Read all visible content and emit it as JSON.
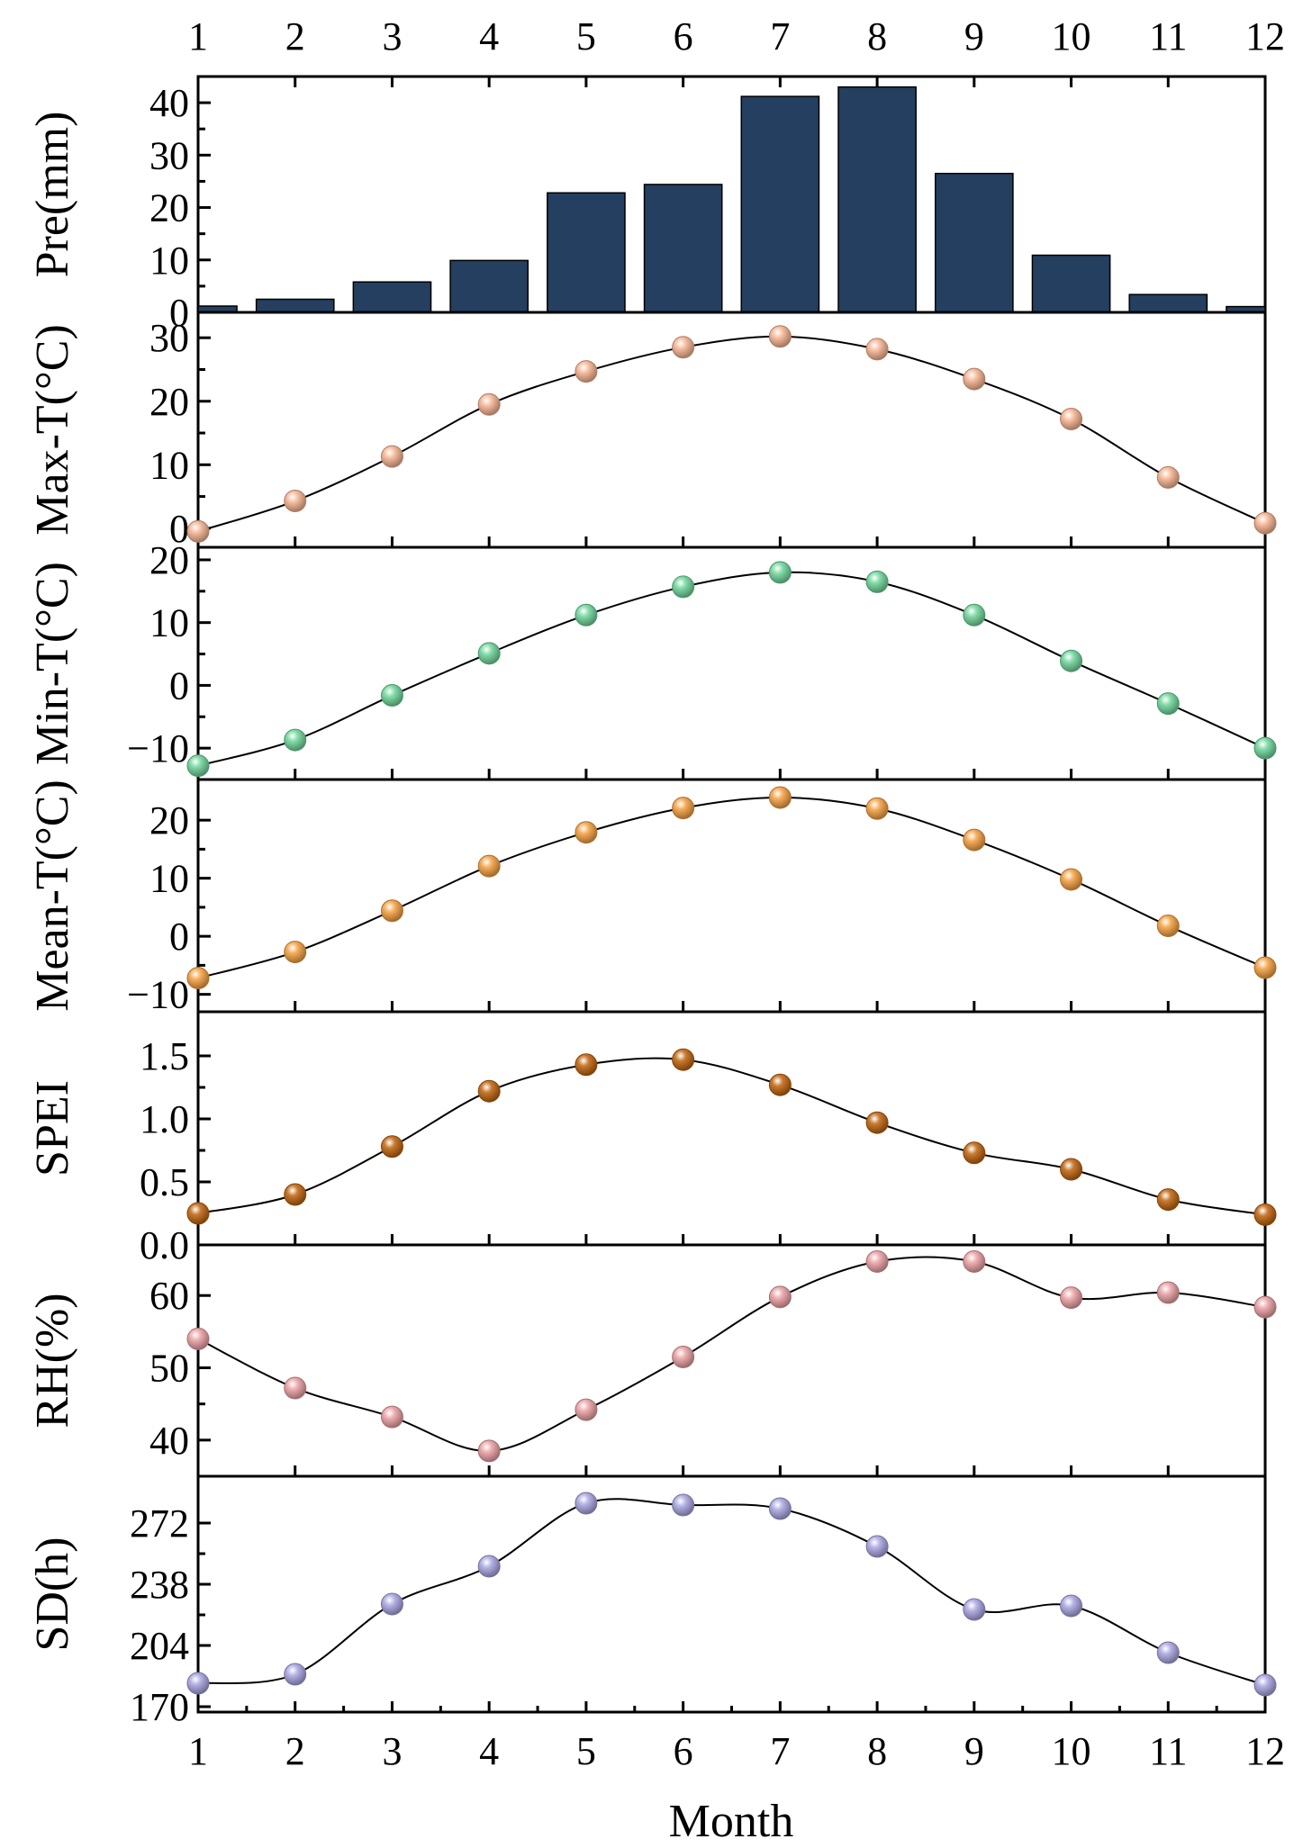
{
  "chart_data": [
    {
      "type": "bar",
      "id": "pre",
      "ylabel": "Pre(mm)",
      "categories": [
        1,
        2,
        3,
        4,
        5,
        6,
        7,
        8,
        9,
        10,
        11,
        12
      ],
      "values": [
        1.2,
        2.5,
        5.8,
        9.9,
        22.8,
        24.4,
        41.2,
        43.0,
        26.5,
        10.9,
        3.4,
        1.1
      ],
      "ylim": [
        0,
        45
      ],
      "yticks": [
        0,
        10,
        20,
        30,
        40
      ],
      "color": "#243f60"
    },
    {
      "type": "line",
      "id": "max-t",
      "ylabel": "Max-T(°C)",
      "x": [
        1,
        2,
        3,
        4,
        5,
        6,
        7,
        8,
        9,
        10,
        11,
        12
      ],
      "values": [
        -0.5,
        4.3,
        11.3,
        19.5,
        24.7,
        28.5,
        30.2,
        28.2,
        23.5,
        17.2,
        8.0,
        0.8
      ],
      "ylim": [
        -3,
        34
      ],
      "yticks": [
        0,
        10,
        20,
        30
      ],
      "color": "#f7b491"
    },
    {
      "type": "line",
      "id": "min-t",
      "ylabel": "Min-T(°C)",
      "x": [
        1,
        2,
        3,
        4,
        5,
        6,
        7,
        8,
        9,
        10,
        11,
        12
      ],
      "values": [
        -12.8,
        -8.7,
        -1.6,
        5.1,
        11.2,
        15.7,
        18.0,
        16.5,
        11.2,
        3.9,
        -2.9,
        -10.0
      ],
      "ylim": [
        -15,
        22
      ],
      "yticks": [
        -10,
        0,
        10,
        20
      ],
      "color": "#6ed69a"
    },
    {
      "type": "line",
      "id": "mean-t",
      "ylabel": "Mean-T(°C)",
      "x": [
        1,
        2,
        3,
        4,
        5,
        6,
        7,
        8,
        9,
        10,
        11,
        12
      ],
      "values": [
        -7.2,
        -2.7,
        4.4,
        12.1,
        17.9,
        22.1,
        23.9,
        22.0,
        16.6,
        9.8,
        1.8,
        -5.4
      ],
      "ylim": [
        -13,
        27
      ],
      "yticks": [
        -10,
        0,
        10,
        20
      ],
      "color": "#f5a040"
    },
    {
      "type": "line",
      "id": "spei",
      "ylabel": "SPEI",
      "x": [
        1,
        2,
        3,
        4,
        5,
        6,
        7,
        8,
        9,
        10,
        11,
        12
      ],
      "values": [
        0.25,
        0.4,
        0.78,
        1.22,
        1.43,
        1.47,
        1.27,
        0.97,
        0.73,
        0.6,
        0.36,
        0.24
      ],
      "ylim": [
        0,
        1.85
      ],
      "yticks": [
        0.0,
        0.5,
        1.0,
        1.5
      ],
      "ytick_labels": [
        "0.0",
        "0.5",
        "1.0",
        "1.5"
      ],
      "color": "#c0630c"
    },
    {
      "type": "line",
      "id": "rh",
      "ylabel": "RH(%)",
      "x": [
        1,
        2,
        3,
        4,
        5,
        6,
        7,
        8,
        9,
        10,
        11,
        12
      ],
      "values": [
        54,
        47.2,
        43.2,
        38.5,
        44.2,
        51.5,
        59.8,
        64.7,
        64.7,
        59.7,
        60.4,
        58.4
      ],
      "ylim": [
        35,
        67
      ],
      "yticks": [
        40,
        50,
        60
      ],
      "color": "#eba0a3"
    },
    {
      "type": "line",
      "id": "sd",
      "ylabel": "SD(h)",
      "xlabel": "Month",
      "x": [
        1,
        2,
        3,
        4,
        5,
        6,
        7,
        8,
        9,
        10,
        11,
        12
      ],
      "values": [
        183,
        188,
        227,
        248,
        283,
        282,
        280,
        259,
        224,
        226,
        200,
        182
      ],
      "ylim": [
        167,
        298
      ],
      "yticks": [
        170,
        204,
        238,
        272
      ],
      "color": "#a8a4e0"
    }
  ],
  "x_ticks": [
    1,
    2,
    3,
    4,
    5,
    6,
    7,
    8,
    9,
    10,
    11,
    12
  ],
  "xlabel": "Month"
}
